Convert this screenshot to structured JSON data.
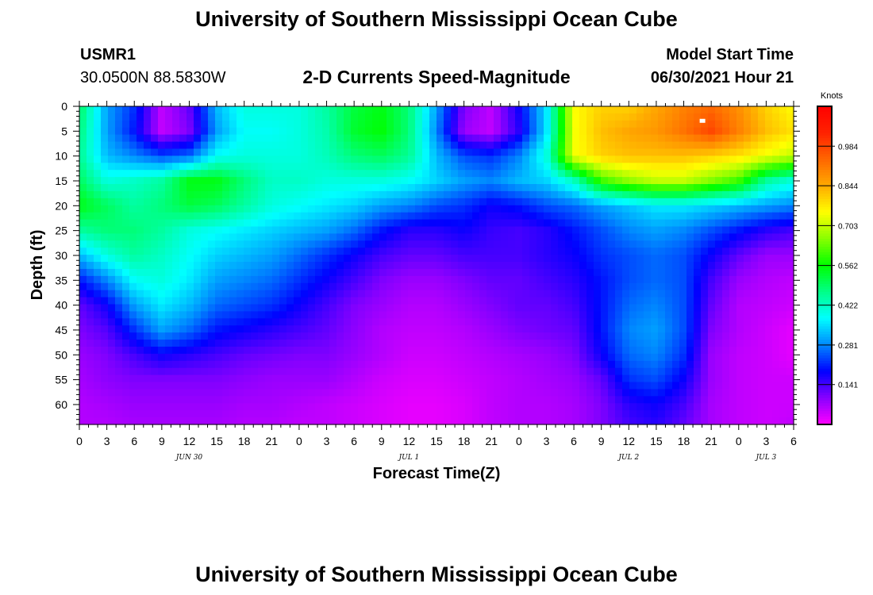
{
  "page": {
    "title_top": "University of Southern Mississippi Ocean Cube",
    "title_bottom": "University of Southern Mississippi Ocean Cube",
    "station_id": "USMR1",
    "station_coords": "30.0500N  88.5830W",
    "model_start_label": "Model Start Time",
    "model_start_value": "06/30/2021 Hour 21"
  },
  "chart_data": {
    "type": "heatmap",
    "title": "2-D Currents Speed-Magnitude",
    "xlabel": "Forecast Time(Z)",
    "ylabel": "Depth (ft)",
    "x_unit": "hours since 06/30/2021 00Z",
    "x_range": [
      0,
      78
    ],
    "x_ticks": [
      0,
      3,
      6,
      9,
      12,
      15,
      18,
      21,
      24,
      27,
      30,
      33,
      36,
      39,
      42,
      45,
      48,
      51,
      54,
      57,
      60,
      63,
      66,
      69,
      72,
      75,
      78
    ],
    "x_tick_labels": [
      "0",
      "3",
      "6",
      "9",
      "12",
      "15",
      "18",
      "21",
      "0",
      "3",
      "6",
      "9",
      "12",
      "15",
      "18",
      "21",
      "0",
      "3",
      "6",
      "9",
      "12",
      "15",
      "18",
      "21",
      "0",
      "3",
      "6"
    ],
    "day_labels": [
      {
        "text": "JUN 30",
        "x": 12
      },
      {
        "text": "JUL 1",
        "x": 36
      },
      {
        "text": "JUL 2",
        "x": 60
      },
      {
        "text": "JUL 3",
        "x": 75
      }
    ],
    "y_range": [
      0,
      64
    ],
    "y_ticks": [
      0,
      5,
      10,
      15,
      20,
      25,
      30,
      35,
      40,
      45,
      50,
      55,
      60
    ],
    "colorbar": {
      "unit": "Knots",
      "range": [
        0,
        1.125
      ],
      "ticks": [
        0.141,
        0.281,
        0.422,
        0.562,
        0.703,
        0.844,
        0.984
      ],
      "tick_labels": [
        "0.141",
        "0.281",
        "0.422",
        "0.562",
        "0.703",
        "0.844",
        "0.984"
      ],
      "colors": [
        "#ff00ff",
        "#8800ff",
        "#0000ff",
        "#0088ff",
        "#00ffff",
        "#00ff88",
        "#00ff00",
        "#88ff00",
        "#ffff00",
        "#ffaa00",
        "#ff6600",
        "#ff2200",
        "#ff0000"
      ]
    },
    "grid": false,
    "x_nodes": [
      0,
      3,
      6,
      9,
      12,
      15,
      18,
      21,
      24,
      27,
      30,
      33,
      36,
      39,
      42,
      45,
      48,
      51,
      54,
      57,
      60,
      63,
      66,
      69,
      72,
      75,
      78
    ],
    "depth_nodes": [
      0,
      5,
      10,
      15,
      20,
      25,
      30,
      35,
      40,
      45,
      50,
      55,
      60,
      64
    ],
    "speed": [
      [
        0.5,
        0.3,
        0.22,
        0.05,
        0.12,
        0.32,
        0.4,
        0.4,
        0.4,
        0.45,
        0.52,
        0.55,
        0.48,
        0.3,
        0.1,
        0.05,
        0.18,
        0.35,
        0.75,
        0.8,
        0.8,
        0.85,
        0.9,
        0.93,
        0.88,
        0.8,
        0.75
      ],
      [
        0.48,
        0.3,
        0.2,
        0.05,
        0.1,
        0.3,
        0.38,
        0.38,
        0.4,
        0.44,
        0.53,
        0.56,
        0.48,
        0.28,
        0.08,
        0.05,
        0.16,
        0.35,
        0.74,
        0.82,
        0.85,
        0.87,
        0.92,
        0.98,
        0.9,
        0.82,
        0.78
      ],
      [
        0.46,
        0.32,
        0.28,
        0.24,
        0.26,
        0.38,
        0.4,
        0.4,
        0.4,
        0.43,
        0.48,
        0.5,
        0.46,
        0.32,
        0.24,
        0.22,
        0.28,
        0.4,
        0.74,
        0.8,
        0.82,
        0.82,
        0.82,
        0.8,
        0.78,
        0.74,
        0.7
      ],
      [
        0.5,
        0.4,
        0.42,
        0.45,
        0.55,
        0.55,
        0.48,
        0.42,
        0.42,
        0.4,
        0.4,
        0.4,
        0.38,
        0.34,
        0.3,
        0.28,
        0.32,
        0.34,
        0.42,
        0.6,
        0.66,
        0.7,
        0.7,
        0.65,
        0.6,
        0.45,
        0.4
      ],
      [
        0.55,
        0.5,
        0.45,
        0.48,
        0.52,
        0.5,
        0.45,
        0.4,
        0.38,
        0.36,
        0.34,
        0.3,
        0.28,
        0.24,
        0.22,
        0.18,
        0.2,
        0.24,
        0.26,
        0.3,
        0.33,
        0.36,
        0.36,
        0.34,
        0.32,
        0.3,
        0.28
      ],
      [
        0.45,
        0.48,
        0.48,
        0.45,
        0.4,
        0.38,
        0.36,
        0.34,
        0.32,
        0.3,
        0.26,
        0.2,
        0.16,
        0.16,
        0.18,
        0.15,
        0.14,
        0.16,
        0.2,
        0.24,
        0.28,
        0.3,
        0.28,
        0.24,
        0.2,
        0.16,
        0.14
      ],
      [
        0.32,
        0.4,
        0.45,
        0.42,
        0.38,
        0.34,
        0.32,
        0.3,
        0.26,
        0.22,
        0.18,
        0.14,
        0.12,
        0.12,
        0.14,
        0.14,
        0.14,
        0.16,
        0.18,
        0.22,
        0.24,
        0.26,
        0.24,
        0.18,
        0.12,
        0.08,
        0.08
      ],
      [
        0.2,
        0.28,
        0.38,
        0.4,
        0.36,
        0.3,
        0.28,
        0.26,
        0.22,
        0.18,
        0.14,
        0.1,
        0.08,
        0.08,
        0.1,
        0.12,
        0.12,
        0.14,
        0.16,
        0.2,
        0.24,
        0.26,
        0.24,
        0.14,
        0.08,
        0.06,
        0.05
      ],
      [
        0.12,
        0.18,
        0.3,
        0.36,
        0.32,
        0.26,
        0.24,
        0.22,
        0.18,
        0.14,
        0.1,
        0.08,
        0.06,
        0.06,
        0.08,
        0.1,
        0.12,
        0.12,
        0.14,
        0.2,
        0.26,
        0.28,
        0.24,
        0.12,
        0.06,
        0.05,
        0.04
      ],
      [
        0.1,
        0.13,
        0.22,
        0.3,
        0.26,
        0.2,
        0.18,
        0.16,
        0.14,
        0.12,
        0.09,
        0.06,
        0.05,
        0.05,
        0.06,
        0.08,
        0.1,
        0.11,
        0.12,
        0.2,
        0.28,
        0.3,
        0.24,
        0.1,
        0.06,
        0.04,
        0.02
      ],
      [
        0.08,
        0.1,
        0.14,
        0.18,
        0.16,
        0.14,
        0.12,
        0.11,
        0.1,
        0.1,
        0.08,
        0.06,
        0.04,
        0.04,
        0.05,
        0.06,
        0.07,
        0.08,
        0.1,
        0.18,
        0.26,
        0.28,
        0.22,
        0.08,
        0.05,
        0.04,
        0.02
      ],
      [
        0.07,
        0.09,
        0.1,
        0.1,
        0.1,
        0.1,
        0.09,
        0.08,
        0.08,
        0.08,
        0.06,
        0.04,
        0.03,
        0.03,
        0.04,
        0.05,
        0.06,
        0.07,
        0.08,
        0.12,
        0.22,
        0.24,
        0.18,
        0.08,
        0.05,
        0.04,
        0.04
      ],
      [
        0.06,
        0.07,
        0.08,
        0.08,
        0.08,
        0.08,
        0.07,
        0.07,
        0.06,
        0.05,
        0.04,
        0.03,
        0.02,
        0.02,
        0.03,
        0.05,
        0.06,
        0.06,
        0.07,
        0.1,
        0.16,
        0.18,
        0.14,
        0.07,
        0.05,
        0.04,
        0.04
      ],
      [
        0.06,
        0.06,
        0.07,
        0.07,
        0.07,
        0.07,
        0.06,
        0.06,
        0.05,
        0.05,
        0.04,
        0.03,
        0.02,
        0.02,
        0.03,
        0.05,
        0.06,
        0.06,
        0.07,
        0.1,
        0.14,
        0.16,
        0.12,
        0.07,
        0.05,
        0.04,
        0.05
      ]
    ],
    "marker": {
      "x": 68,
      "depth": 3
    }
  }
}
